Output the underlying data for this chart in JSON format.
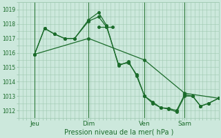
{
  "background_color": "#cce8dc",
  "grid_color": "#9ec8b0",
  "line_color": "#1a6b2a",
  "xlabel": "Pression niveau de la mer( hPa )",
  "ylim": [
    1011.5,
    1019.5
  ],
  "yticks": [
    1012,
    1013,
    1014,
    1015,
    1016,
    1017,
    1018,
    1019
  ],
  "day_labels": [
    "Jeu",
    "Dim",
    "Ven",
    "Sam"
  ],
  "day_positions": [
    0.08,
    0.35,
    0.63,
    0.83
  ],
  "xlim": [
    0,
    1.0
  ],
  "series1_x": [
    0.08,
    0.13,
    0.18,
    0.23,
    0.28,
    0.35,
    0.4,
    0.44,
    0.5,
    0.55,
    0.59,
    0.63,
    0.67,
    0.71,
    0.75,
    0.79,
    0.83,
    0.87,
    0.91,
    0.95,
    1.0
  ],
  "series1_y": [
    1015.9,
    1017.7,
    1017.3,
    1017.0,
    1017.0,
    1018.2,
    1018.5,
    1017.8,
    1015.2,
    1015.3,
    1014.5,
    1013.0,
    1012.6,
    1012.2,
    1012.15,
    1012.0,
    1013.1,
    1013.0,
    1012.3,
    1012.5,
    1012.85
  ],
  "series2_x": [
    0.08,
    0.13,
    0.18,
    0.23,
    0.28,
    0.35,
    0.4,
    0.44,
    0.5,
    0.55,
    0.59,
    0.63,
    0.67,
    0.71,
    0.75,
    0.79,
    0.83,
    0.87,
    0.91,
    0.95,
    1.0
  ],
  "series2_y": [
    1015.9,
    1017.7,
    1017.3,
    1017.0,
    1017.0,
    1018.3,
    1018.8,
    1017.9,
    1015.1,
    1015.4,
    1014.4,
    1013.0,
    1012.5,
    1012.2,
    1012.1,
    1011.9,
    1013.0,
    1013.0,
    1012.3,
    1012.5,
    1012.85
  ],
  "series3_x": [
    0.08,
    0.35,
    0.63,
    0.83,
    1.0
  ],
  "series3_y": [
    1015.9,
    1017.0,
    1015.5,
    1013.2,
    1012.85
  ],
  "series4_x": [
    0.4,
    0.44,
    0.47
  ],
  "series4_y": [
    1017.8,
    1017.8,
    1017.8
  ],
  "marker_size": 2.5,
  "linewidth": 0.9
}
